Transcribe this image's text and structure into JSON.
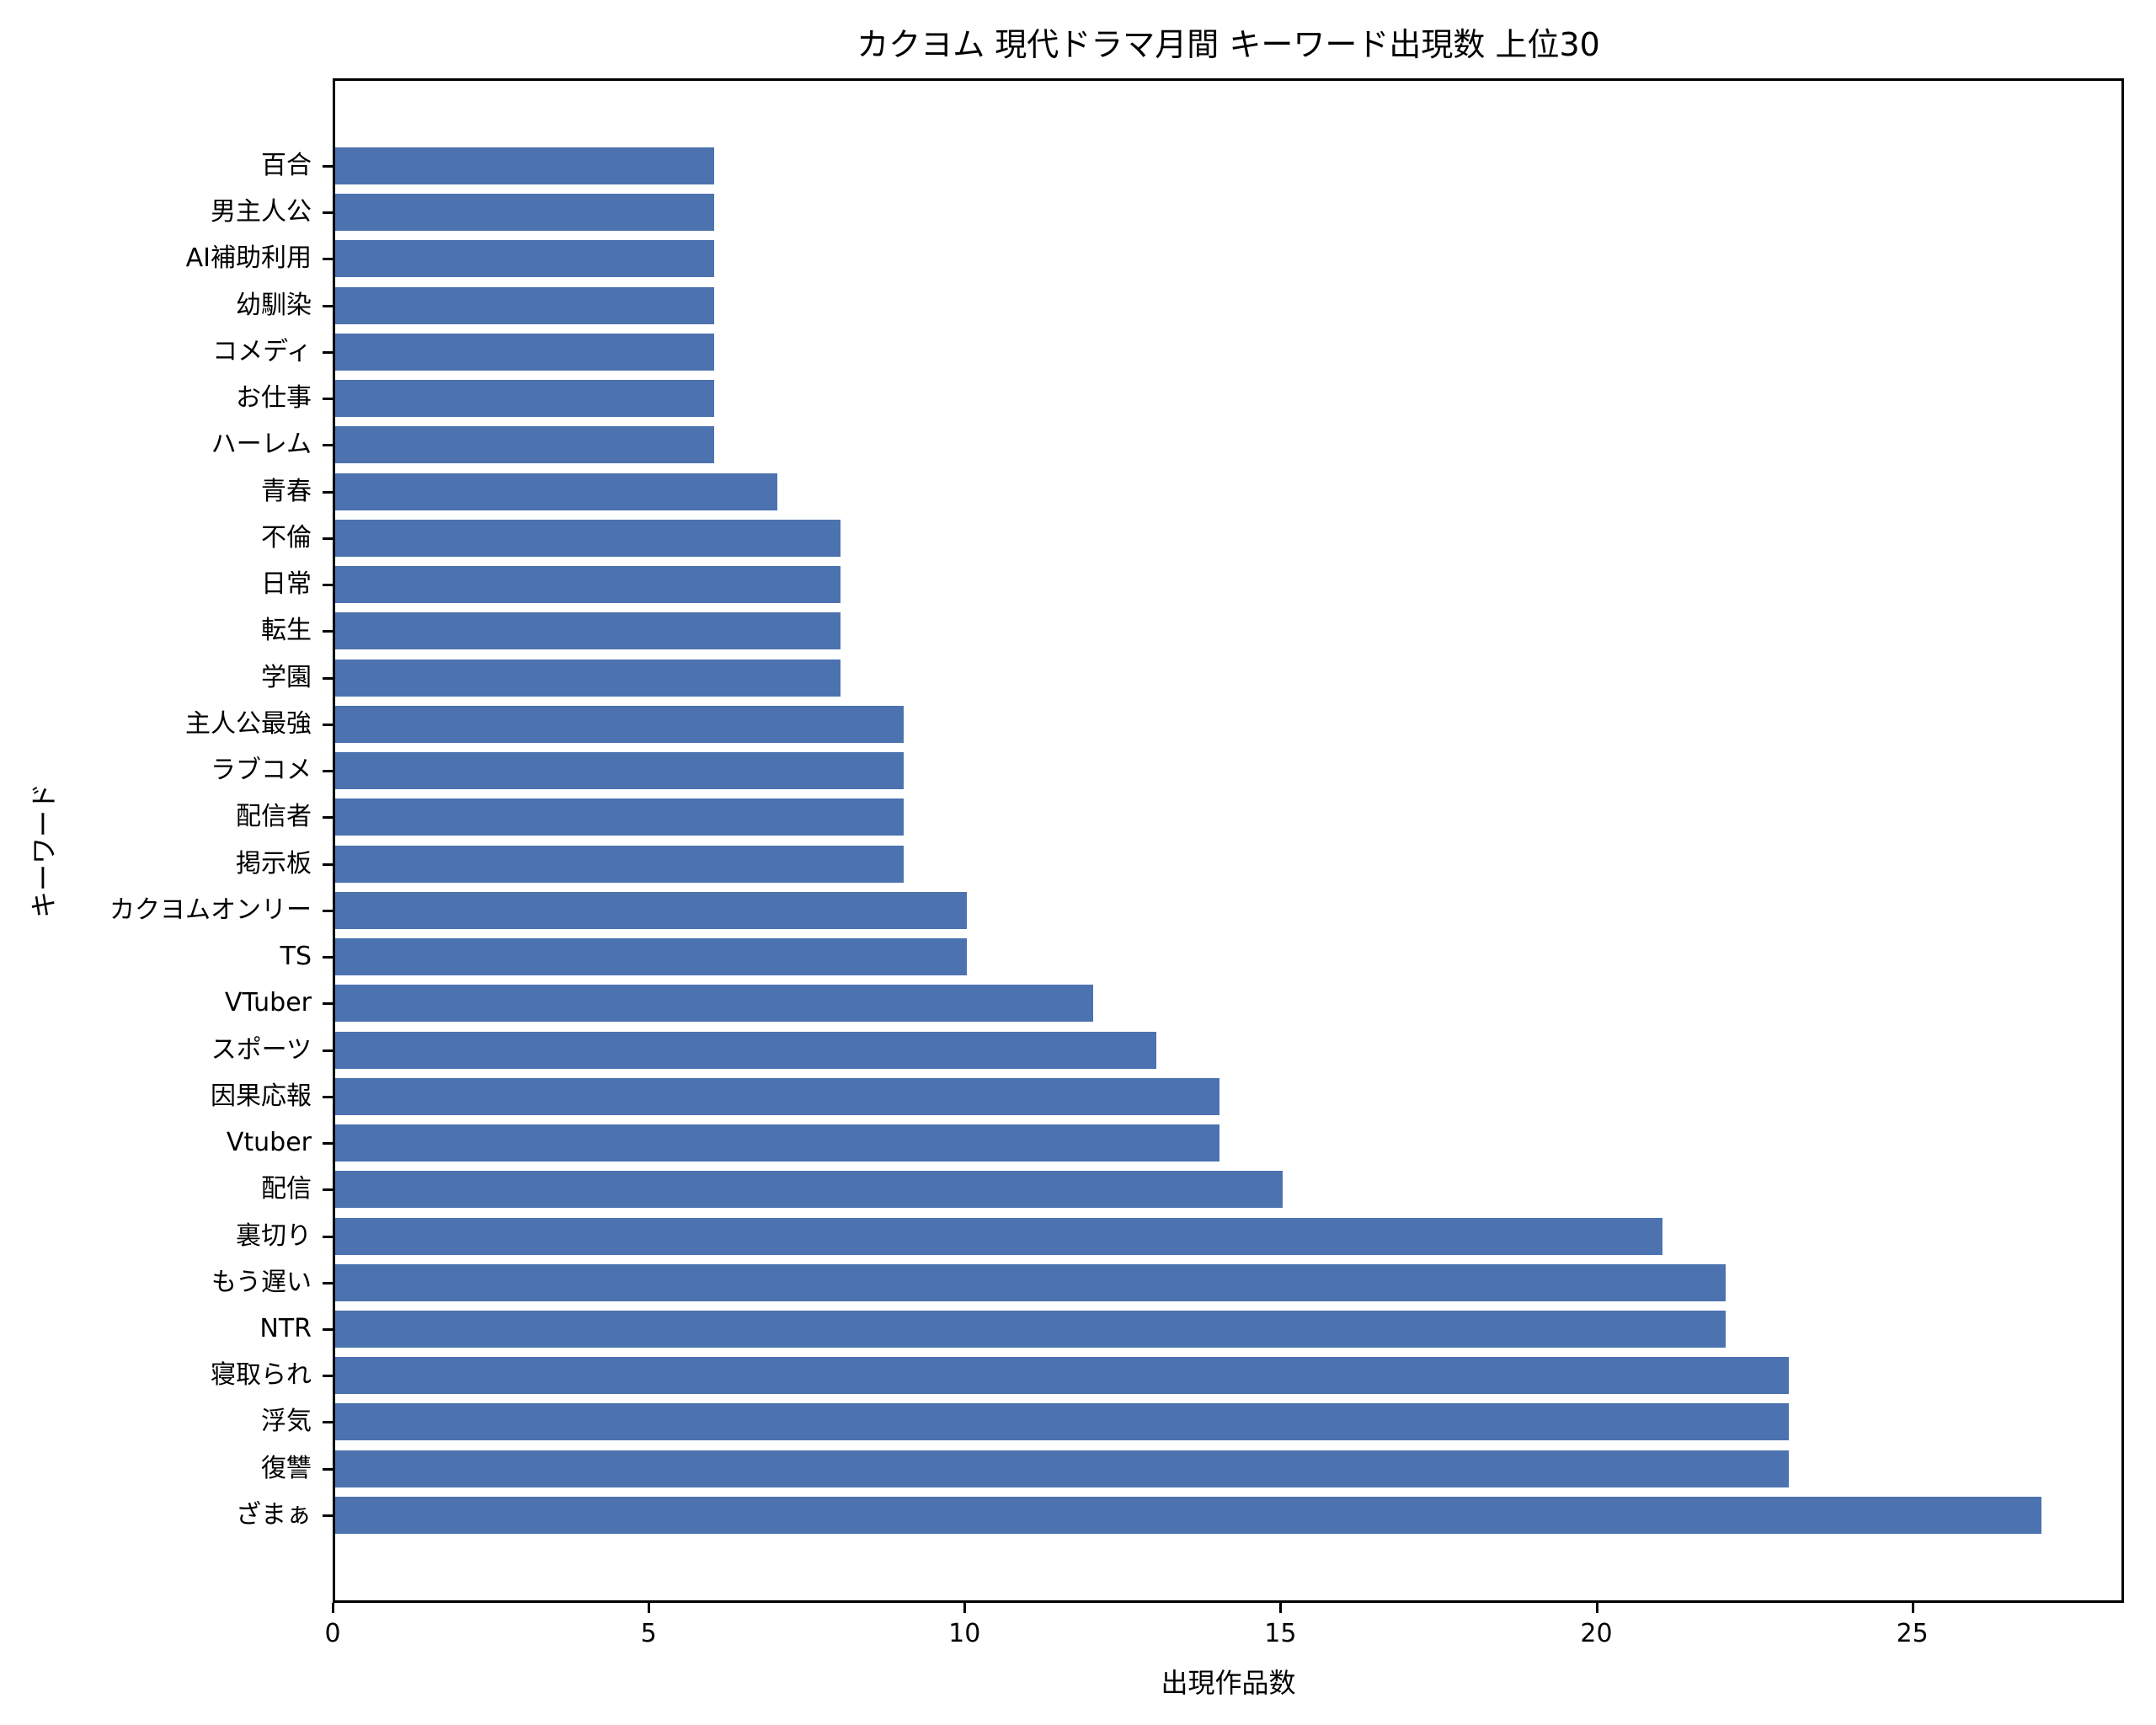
{
  "chart_data": {
    "type": "bar",
    "orientation": "horizontal",
    "title": "カクヨム 現代ドラマ月間 キーワード出現数 上位30",
    "xlabel": "出現作品数",
    "ylabel": "キーワード",
    "xlim": [
      0,
      28.35
    ],
    "xticks": [
      0,
      5,
      10,
      15,
      20,
      25
    ],
    "grid": false,
    "legend": null,
    "bar_color": "#4C72B0",
    "categories": [
      "百合",
      "男主人公",
      "AI補助利用",
      "幼馴染",
      "コメディ",
      "お仕事",
      "ハーレム",
      "青春",
      "不倫",
      "日常",
      "転生",
      "学園",
      "主人公最強",
      "ラブコメ",
      "配信者",
      "掲示板",
      "カクヨムオンリー",
      "TS",
      "VTuber",
      "スポーツ",
      "因果応報",
      "Vtuber",
      "配信",
      "裏切り",
      "もう遅い",
      "NTR",
      "寝取られ",
      "浮気",
      "復讐",
      "ざまぁ"
    ],
    "values": [
      6,
      6,
      6,
      6,
      6,
      6,
      6,
      7,
      8,
      8,
      8,
      8,
      9,
      9,
      9,
      9,
      10,
      10,
      12,
      13,
      14,
      14,
      15,
      21,
      22,
      22,
      23,
      23,
      23,
      27
    ]
  }
}
